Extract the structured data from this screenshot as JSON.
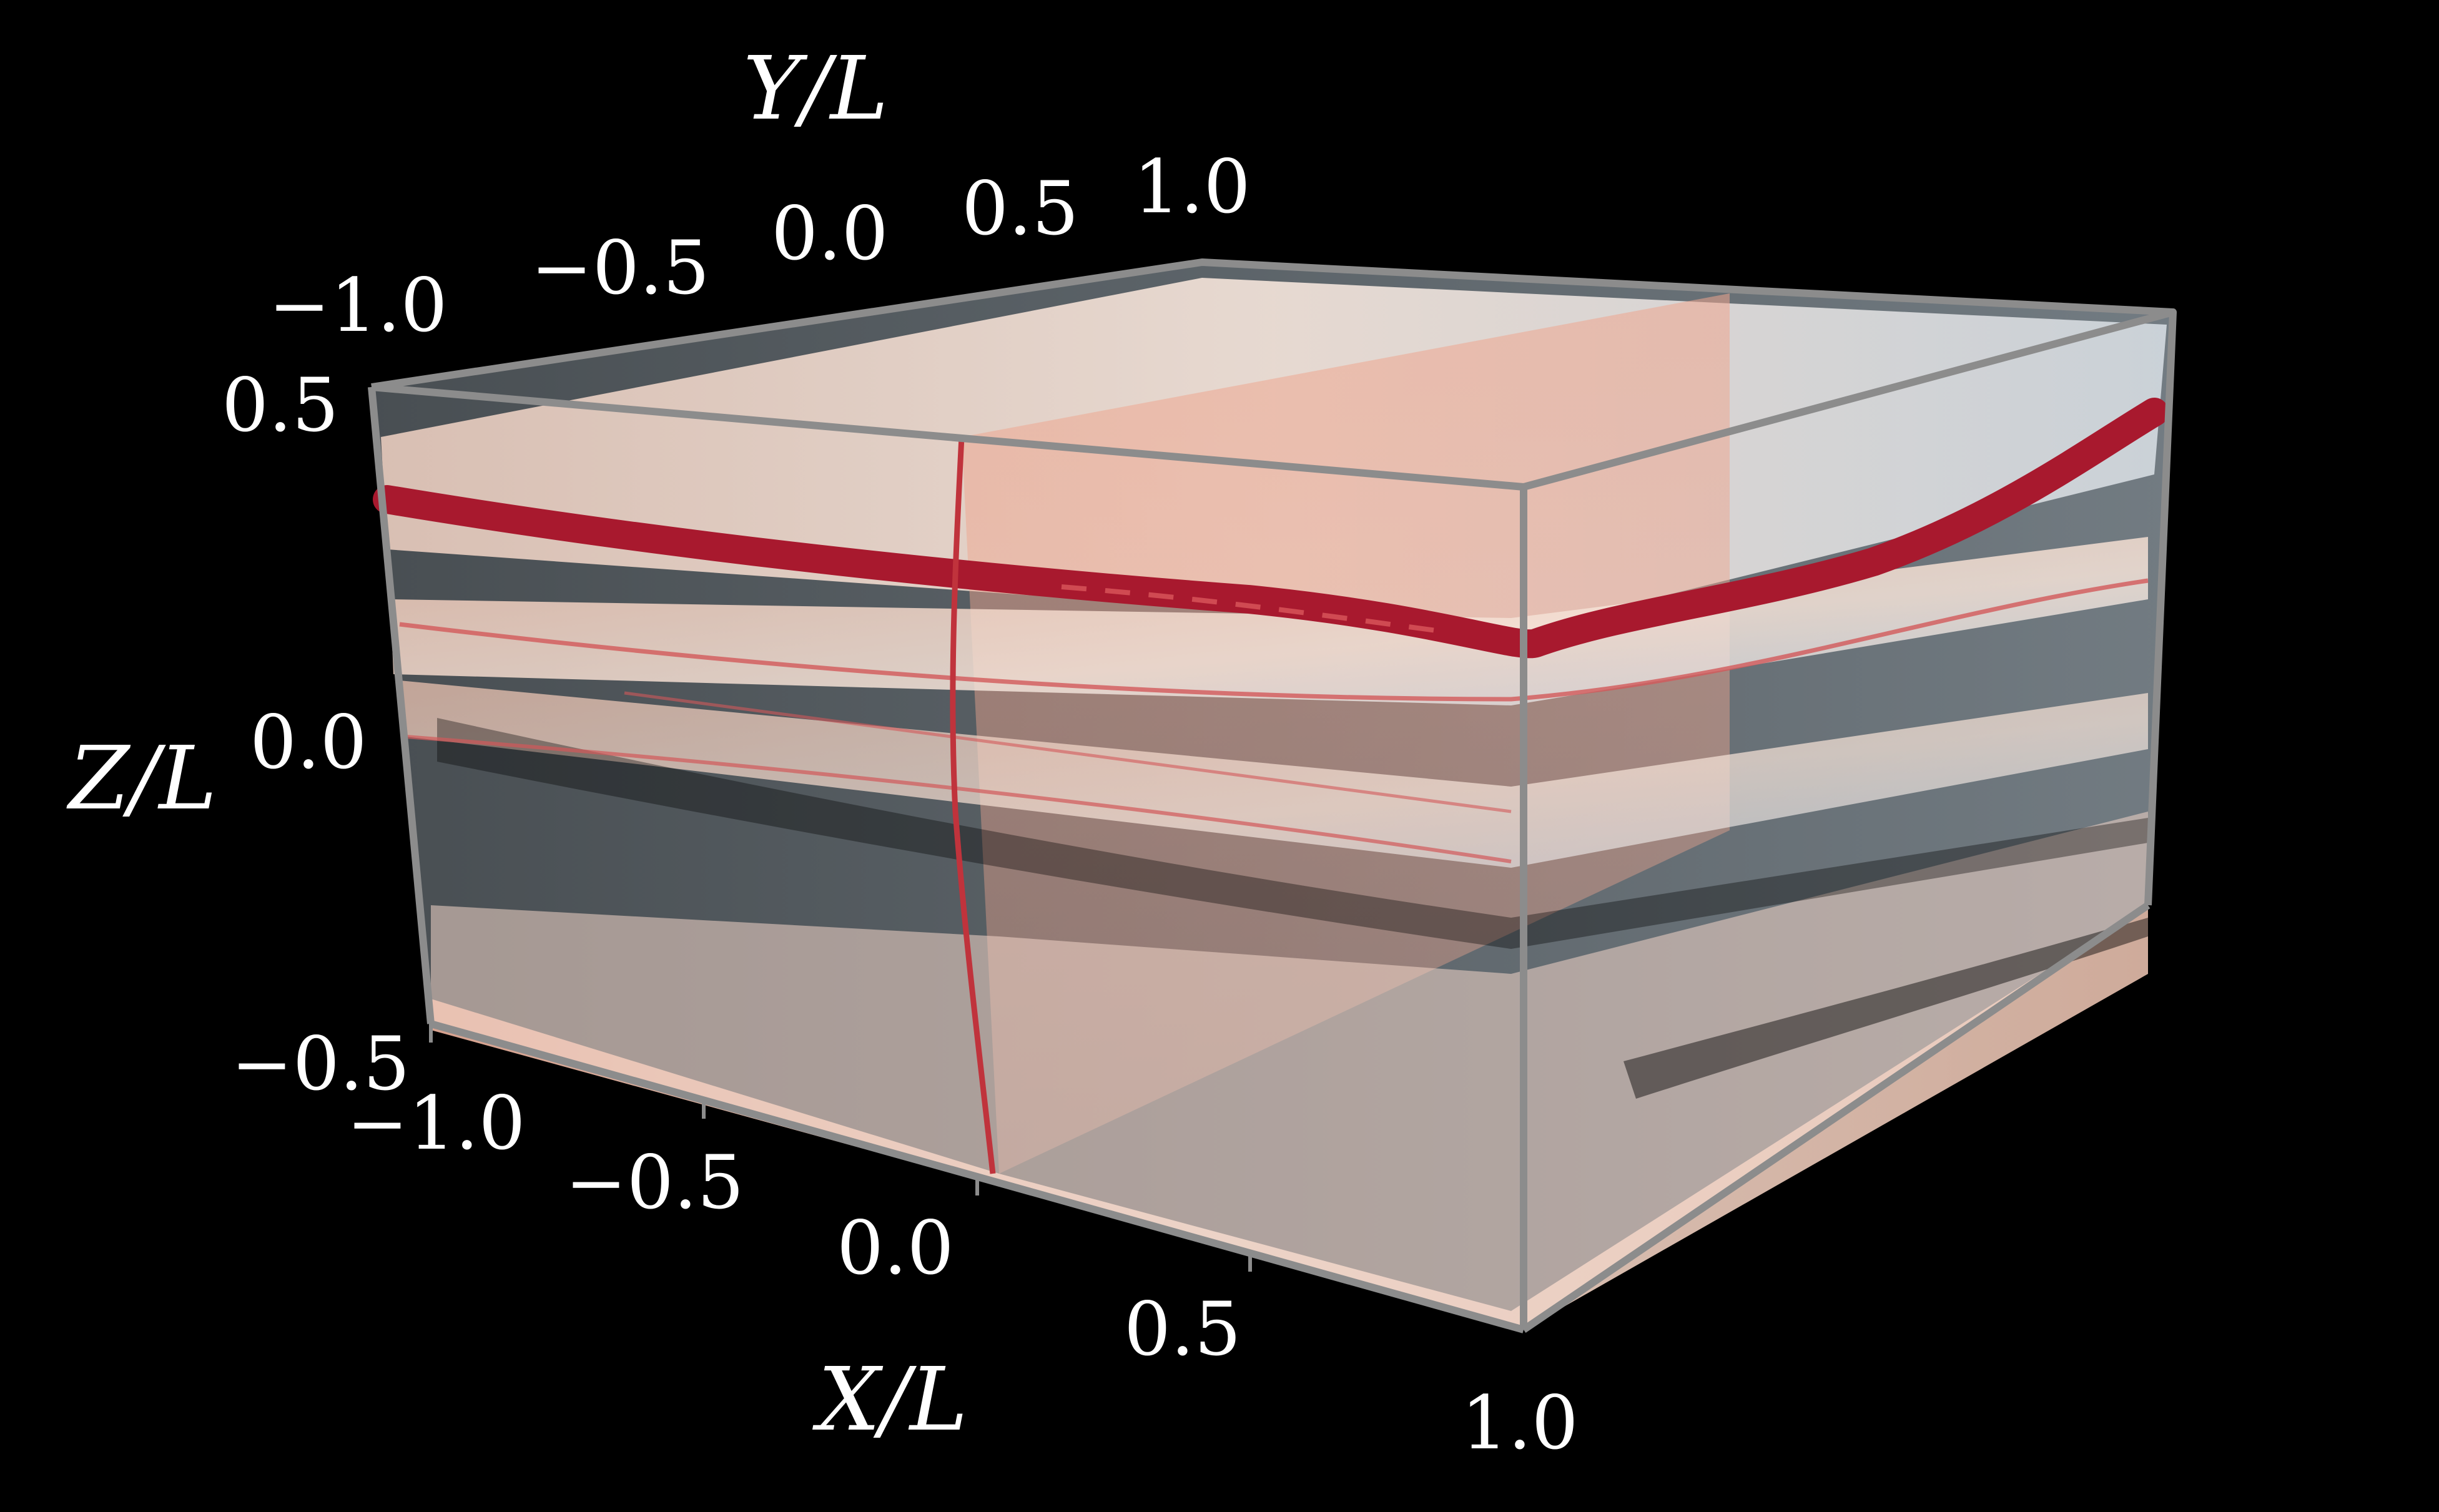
{
  "figure": {
    "axes": {
      "x": {
        "title": "X/L",
        "ticks": [
          "−1.0",
          "−0.5",
          "0.0",
          "0.5",
          "1.0"
        ]
      },
      "y": {
        "title": "Y/L",
        "ticks": [
          "−1.0",
          "−0.5",
          "0.0",
          "0.5",
          "1.0"
        ]
      },
      "z": {
        "title": "Z/L",
        "ticks": [
          "0.5",
          "0.0",
          "−0.5"
        ]
      }
    },
    "colors": {
      "background": "#000000",
      "box_edge": "#8c8c8c",
      "sheet_light": "#f4e2d6",
      "sheet_pale_blue": "#dceaf3",
      "sheet_salmon": "#eea58e",
      "filament_dark_red": "#a8192e"
    }
  }
}
